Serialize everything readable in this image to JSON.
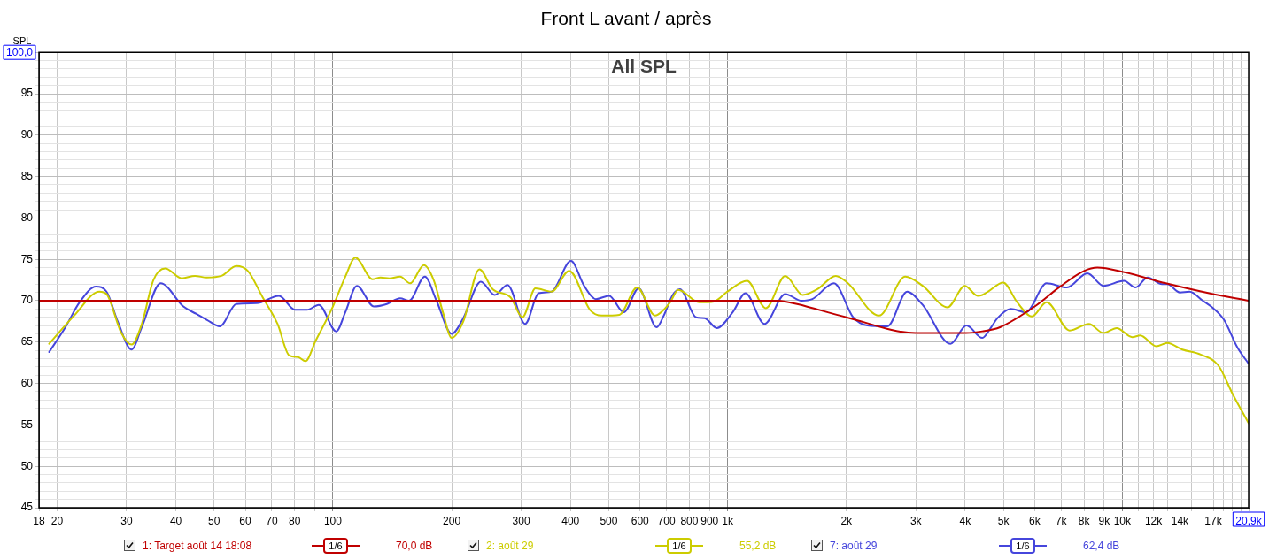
{
  "chart_data": {
    "type": "line",
    "title": "Front L avant / après",
    "subtitle": "All SPL",
    "ylabel": "SPL",
    "log": "x",
    "grid": true,
    "legend": "bottom",
    "xlim": [
      18,
      20900
    ],
    "ylim": [
      45,
      100
    ],
    "xticks": [
      18,
      20,
      30,
      40,
      50,
      60,
      70,
      80,
      {
        "value": 90,
        "label": null
      },
      100,
      200,
      300,
      400,
      500,
      600,
      700,
      800,
      900,
      {
        "value": 1000,
        "label": "1k"
      },
      {
        "value": 2000,
        "label": "2k"
      },
      {
        "value": 3000,
        "label": "3k"
      },
      {
        "value": 4000,
        "label": "4k"
      },
      {
        "value": 5000,
        "label": "5k"
      },
      {
        "value": 6000,
        "label": "6k"
      },
      {
        "value": 7000,
        "label": "7k"
      },
      {
        "value": 8000,
        "label": "8k"
      },
      {
        "value": 9000,
        "label": "9k"
      },
      {
        "value": 10000,
        "label": "10k"
      },
      {
        "value": 11000,
        "label": null
      },
      {
        "value": 12000,
        "label": "12k"
      },
      {
        "value": 13000,
        "label": null
      },
      {
        "value": 14000,
        "label": "14k"
      },
      {
        "value": 15000,
        "label": null
      },
      {
        "value": 16000,
        "label": null
      },
      {
        "value": 17000,
        "label": "17k"
      },
      {
        "value": 18000,
        "label": null
      },
      {
        "value": 19000,
        "label": null
      },
      {
        "value": 20000,
        "label": null
      },
      {
        "value": 20900,
        "label": "20,9k"
      }
    ],
    "yticks": [
      45,
      {
        "value": 46,
        "label": null
      },
      {
        "value": 47,
        "label": null
      },
      {
        "value": 48,
        "label": null
      },
      {
        "value": 49,
        "label": null
      },
      50,
      {
        "value": 51,
        "label": null
      },
      {
        "value": 52,
        "label": null
      },
      {
        "value": 53,
        "label": null
      },
      {
        "value": 54,
        "label": null
      },
      55,
      {
        "value": 56,
        "label": null
      },
      {
        "value": 57,
        "label": null
      },
      {
        "value": 58,
        "label": null
      },
      {
        "value": 59,
        "label": null
      },
      60,
      {
        "value": 61,
        "label": null
      },
      {
        "value": 62,
        "label": null
      },
      {
        "value": 63,
        "label": null
      },
      {
        "value": 64,
        "label": null
      },
      65,
      {
        "value": 66,
        "label": null
      },
      {
        "value": 67,
        "label": null
      },
      {
        "value": 68,
        "label": null
      },
      {
        "value": 69,
        "label": null
      },
      70,
      {
        "value": 71,
        "label": null
      },
      {
        "value": 72,
        "label": null
      },
      {
        "value": 73,
        "label": null
      },
      {
        "value": 74,
        "label": null
      },
      75,
      {
        "value": 76,
        "label": null
      },
      {
        "value": 77,
        "label": null
      },
      {
        "value": 78,
        "label": null
      },
      {
        "value": 79,
        "label": null
      },
      80,
      {
        "value": 81,
        "label": null
      },
      {
        "value": 82,
        "label": null
      },
      {
        "value": 83,
        "label": null
      },
      {
        "value": 84,
        "label": null
      },
      85,
      {
        "value": 86,
        "label": null
      },
      {
        "value": 87,
        "label": null
      },
      {
        "value": 88,
        "label": null
      },
      {
        "value": 89,
        "label": null
      },
      90,
      {
        "value": 91,
        "label": null
      },
      {
        "value": 92,
        "label": null
      },
      {
        "value": 93,
        "label": null
      },
      {
        "value": 94,
        "label": null
      },
      95,
      {
        "value": 96,
        "label": null
      },
      {
        "value": 97,
        "label": null
      },
      {
        "value": 98,
        "label": null
      },
      {
        "value": 99,
        "label": null
      },
      {
        "value": 100,
        "label": "100,0"
      }
    ],
    "annotations": [
      "1/6",
      "70,0 dB",
      "1/6",
      "55,2 dB",
      "1/6",
      "62,4 dB"
    ],
    "series": [
      {
        "name": "1: Target août 14 18:08",
        "color": "#c00000",
        "x": [
          18,
          1350,
          1400,
          1500,
          2000,
          3000,
          4000,
          4420,
          4900,
          6000,
          7000,
          8000,
          8650,
          10000,
          12900,
          16600,
          20900
        ],
        "values": [
          70,
          70,
          69.9,
          69.6,
          68,
          66.1,
          66.1,
          66.3,
          66.8,
          69.3,
          71.8,
          73.6,
          74,
          73.5,
          72.1,
          70.9,
          70
        ]
      },
      {
        "name": "2: août 29",
        "color": "#cccc00",
        "x": [
          19.1,
          22.1,
          25.6,
          26.7,
          29.1,
          30.9,
          32.8,
          35.1,
          37.6,
          41.4,
          44.7,
          47.9,
          52.2,
          56.9,
          60.9,
          66.4,
          72.4,
          77.5,
          81.6,
          85.2,
          90.5,
          100,
          107.5,
          114,
          126,
          132,
          139,
          148,
          157,
          170,
          180,
          190,
          200,
          214,
          235,
          254,
          282,
          302,
          326,
          358,
          397,
          448,
          480,
          532,
          590,
          655,
          689,
          715,
          750,
          847,
          924,
          999,
          1120,
          1250,
          1400,
          1550,
          1690,
          1880,
          2010,
          2420,
          2820,
          3120,
          3610,
          3990,
          4300,
          4420,
          4600,
          4990,
          5420,
          5900,
          6430,
          7360,
          8230,
          8960,
          9680,
          10600,
          11100,
          12200,
          13000,
          14200,
          15800,
          17500,
          19100,
          20900
        ],
        "values": [
          64.8,
          68.2,
          71.1,
          70.8,
          66.1,
          64.7,
          67.2,
          72.5,
          73.9,
          72.7,
          73,
          72.8,
          73,
          74.2,
          73.6,
          70.4,
          67.2,
          63.4,
          63.2,
          62.7,
          65.2,
          69.3,
          72.9,
          75.2,
          72.6,
          72.8,
          72.7,
          72.9,
          72.1,
          74.3,
          72.5,
          68.6,
          65.5,
          67.5,
          73.8,
          71.4,
          70.4,
          68,
          71.5,
          71.1,
          73.6,
          68.9,
          68.2,
          68.3,
          71.6,
          68.2,
          68.9,
          69.8,
          71.3,
          69.8,
          69.9,
          71.1,
          72.4,
          69.1,
          73,
          70.7,
          71.4,
          73,
          72.2,
          68.2,
          72.9,
          71.8,
          69.2,
          71.8,
          70.6,
          70.7,
          71.2,
          72.2,
          69.8,
          68.1,
          69.8,
          66.4,
          67.2,
          66.1,
          66.7,
          65.6,
          65.8,
          64.5,
          64.9,
          64.1,
          63.5,
          62.2,
          58.6,
          55.2
        ]
      },
      {
        "name": "7: août 29",
        "color": "#4646dc",
        "x": [
          19.1,
          21,
          22.8,
          25.1,
          26.7,
          28.5,
          30.9,
          32.8,
          36.6,
          41.8,
          45.1,
          47.9,
          51.7,
          56.9,
          64.1,
          73,
          80.2,
          86,
          92.1,
          102,
          107.5,
          115,
          127,
          137,
          148,
          156,
          171,
          183,
          200,
          214,
          237,
          257,
          277,
          307,
          332,
          358,
          401,
          433,
          464,
          501,
          546,
          595,
          661,
          689,
          726,
          757,
          832,
          875,
          939,
          1030,
          1110,
          1240,
          1400,
          1540,
          1640,
          1860,
          2080,
          2260,
          2540,
          2850,
          3120,
          3670,
          4030,
          4420,
          4640,
          4830,
          5220,
          5700,
          6430,
          7240,
          8160,
          8960,
          10100,
          10800,
          11600,
          12600,
          13000,
          14000,
          14800,
          16000,
          17000,
          18100,
          19600,
          20900
        ],
        "values": [
          63.8,
          66.8,
          69.8,
          71.7,
          71.1,
          67.5,
          64.1,
          66.8,
          72.1,
          69.3,
          68.4,
          67.7,
          66.9,
          69.6,
          69.7,
          70.6,
          68.9,
          68.9,
          69.5,
          66.3,
          68.6,
          71.8,
          69.3,
          69.6,
          70.3,
          70,
          72.9,
          70,
          66,
          67.9,
          72.3,
          70.7,
          71.9,
          67.2,
          70.9,
          71.1,
          74.8,
          71.8,
          70.2,
          70.6,
          68.6,
          71.5,
          66.8,
          68.2,
          70.7,
          71.4,
          68,
          67.9,
          66.7,
          68.6,
          70.9,
          67.2,
          70.8,
          70,
          70.2,
          72.1,
          68,
          67,
          66.9,
          71.1,
          69.5,
          64.8,
          67,
          65.5,
          66.7,
          67.9,
          69,
          68.6,
          72.1,
          71.6,
          73.3,
          71.8,
          72.4,
          71.6,
          72.8,
          72,
          72,
          71,
          71.1,
          70,
          69.1,
          67.7,
          64.3,
          62.4
        ]
      }
    ]
  }
}
